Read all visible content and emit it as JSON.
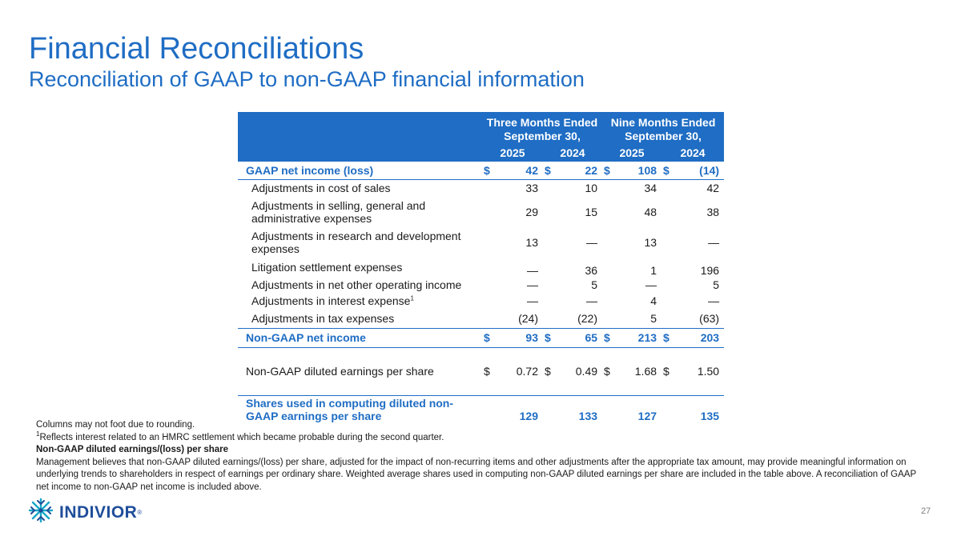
{
  "slide": {
    "title": "Financial Reconciliations",
    "subtitle": "Reconciliation of GAAP to non-GAAP financial information",
    "page_number": "27"
  },
  "table": {
    "group_headers": [
      {
        "line1": "Three Months Ended",
        "line2": "September 30,"
      },
      {
        "line1": "Nine Months Ended",
        "line2": "September 30,"
      }
    ],
    "years": [
      "2025",
      "2024",
      "2025",
      "2024"
    ],
    "rows": [
      {
        "label": "GAAP net income (loss)",
        "style": "bold",
        "currency": "$",
        "values": [
          "42",
          "22",
          "108",
          "(14)"
        ]
      },
      {
        "label": "Adjustments in cost of sales",
        "style": "sub",
        "currency": "",
        "values": [
          "33",
          "10",
          "34",
          "42"
        ]
      },
      {
        "label": "Adjustments in selling, general and administrative expenses",
        "style": "sub",
        "currency": "",
        "values": [
          "29",
          "15",
          "48",
          "38"
        ]
      },
      {
        "label": "Adjustments in research and development expenses",
        "style": "sub",
        "currency": "",
        "values": [
          "13",
          "—",
          "13",
          "—"
        ]
      },
      {
        "label": "Litigation settlement expenses",
        "style": "sub",
        "currency": "",
        "values": [
          "—",
          "36",
          "1",
          "196"
        ]
      },
      {
        "label": "Adjustments in net other operating income",
        "style": "sub",
        "currency": "",
        "values": [
          "—",
          "5",
          "—",
          "5"
        ]
      },
      {
        "label": "Adjustments in interest expense",
        "footnote": "1",
        "style": "sub",
        "currency": "",
        "values": [
          "—",
          "—",
          "4",
          "—"
        ]
      },
      {
        "label": "Adjustments in tax expenses",
        "style": "sub",
        "currency": "",
        "values": [
          "(24)",
          "(22)",
          "5",
          "(63)"
        ]
      },
      {
        "label": "Non-GAAP net income",
        "style": "bold",
        "currency": "$",
        "values": [
          "93",
          "65",
          "213",
          "203"
        ]
      },
      {
        "label": "Non-GAAP diluted earnings per share",
        "style": "plain",
        "currency": "$",
        "values": [
          "0.72",
          "0.49",
          "1.68",
          "1.50"
        ]
      },
      {
        "label": "Shares used in computing diluted non-GAAP earnings per share",
        "style": "bold",
        "currency": "",
        "values": [
          "129",
          "133",
          "127",
          "135"
        ]
      }
    ]
  },
  "notes": {
    "rounding": "Columns may not foot due to rounding.",
    "footnote_marker": "1",
    "footnote_text": "Reflects interest related to an HMRC settlement which became probable during the second quarter.",
    "heading": "Non-GAAP diluted earnings/(loss) per share",
    "body": "Management believes that non-GAAP diluted earnings/(loss) per share, adjusted for the impact of non-recurring items and other adjustments after the appropriate tax amount, may provide meaningful information on underlying trends to shareholders in respect of earnings per ordinary share. Weighted average shares used in computing non-GAAP diluted earnings per share are included in the table above. A reconciliation of GAAP net income to non-GAAP net income is included above."
  },
  "logo": {
    "icon": "indivior-snowflake-icon",
    "wordmark": "INDIVIOR",
    "registered": "®"
  },
  "colors": {
    "brand_blue": "#1f6dc4",
    "logo_navy": "#1f4e9a",
    "logo_teal": "#17a7c8"
  }
}
